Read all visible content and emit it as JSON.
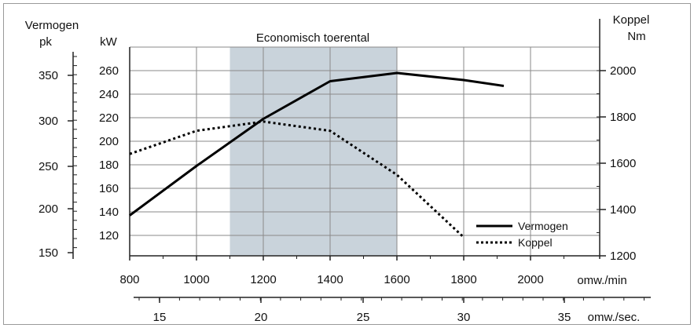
{
  "chart_data": {
    "type": "line",
    "title": "",
    "shaded_region": {
      "label": "Economisch toerental",
      "x_from": 1100,
      "x_to": 1600
    },
    "x_axis": {
      "label": "omw./min",
      "range": [
        800,
        2150
      ],
      "ticks": [
        "800",
        "1000",
        "1200",
        "1400",
        "1600",
        "1800",
        "2000"
      ]
    },
    "x2_axis": {
      "label": "omw./sec.",
      "ticks": [
        "15",
        "20",
        "25",
        "30",
        "35"
      ]
    },
    "y_left_pk": {
      "label_line1": "Vermogen",
      "label_line2": "pk",
      "ticks": [
        "350",
        "300",
        "250",
        "200",
        "150"
      ]
    },
    "y_left_kw": {
      "label": "kW",
      "range": [
        100,
        270
      ],
      "ticks": [
        "260",
        "240",
        "220",
        "200",
        "180",
        "160",
        "140",
        "120"
      ]
    },
    "y_right": {
      "label_line1": "Koppel",
      "label_line2": "Nm",
      "range": [
        1200,
        2000
      ],
      "ticks": [
        "2000",
        "1800",
        "1600",
        "1400",
        "1200"
      ]
    },
    "series": [
      {
        "name": "Vermogen",
        "axis": "kW",
        "style": "solid",
        "x": [
          800,
          1000,
          1200,
          1400,
          1600,
          1800,
          1920
        ],
        "y": [
          137,
          179,
          219,
          251,
          258,
          252,
          247
        ]
      },
      {
        "name": "Koppel",
        "axis": "Nm",
        "style": "dotted",
        "x": [
          800,
          1000,
          1200,
          1400,
          1600,
          1800
        ],
        "y": [
          1640,
          1740,
          1780,
          1740,
          1550,
          1280
        ]
      }
    ],
    "legend": {
      "position": "bottom-right"
    },
    "grid": true
  }
}
